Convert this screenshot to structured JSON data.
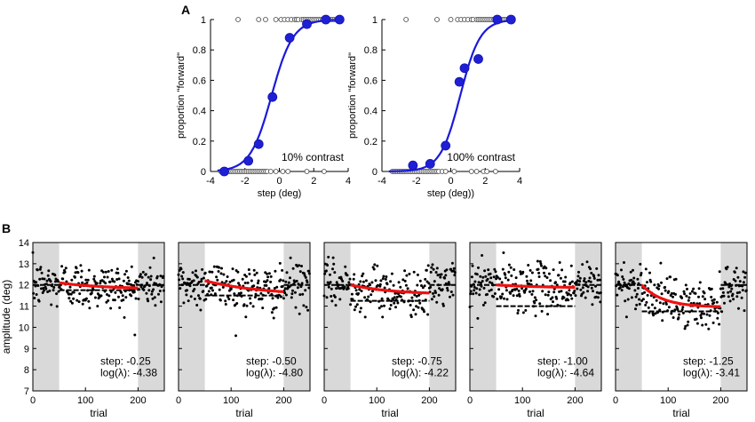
{
  "panel_labels": {
    "a": "A",
    "b": "B"
  },
  "chart_data": [
    {
      "id": "A1",
      "type": "scatter",
      "ylabel": "proportion \"forward\"",
      "xlabel": "step (deg)",
      "xlim": [
        -4,
        4
      ],
      "ylim": [
        0,
        1
      ],
      "xticks": [
        -4,
        -2,
        0,
        2,
        4
      ],
      "yticks": [
        0,
        0.2,
        0.4,
        0.6,
        0.8,
        1
      ],
      "annotation": "10% contrast",
      "series": [
        {
          "name": "binned proportion",
          "x": [
            -3.2,
            -1.8,
            -1.2,
            -0.4,
            0.6,
            1.6,
            2.7,
            3.5
          ],
          "y": [
            0.0,
            0.07,
            0.18,
            0.49,
            0.88,
            0.97,
            1.0,
            1.0
          ]
        },
        {
          "name": "logistic fit",
          "mu": -0.45,
          "scale": 0.62
        }
      ],
      "raw_trials": {
        "forward_x": [
          -2.4,
          -1.2,
          -0.8,
          -0.2,
          0.1,
          0.3,
          0.5,
          0.7,
          0.9,
          1.0,
          1.1,
          1.3,
          1.4,
          1.5,
          1.6,
          1.7,
          1.8,
          1.9,
          2.0,
          2.1,
          2.2,
          2.3,
          2.4,
          2.5,
          2.6,
          2.7,
          2.8,
          2.9,
          3.0,
          3.1,
          3.2,
          3.3,
          3.4
        ],
        "backward_x": [
          -3.4,
          -3.3,
          -3.2,
          -3.1,
          -3.0,
          -2.9,
          -2.8,
          -2.7,
          -2.6,
          -2.5,
          -2.4,
          -2.3,
          -2.2,
          -2.1,
          -2.0,
          -1.9,
          -1.8,
          -1.7,
          -1.6,
          -1.5,
          -1.4,
          -1.3,
          -1.2,
          -1.1,
          -1.0,
          -0.9,
          -0.8,
          -0.7,
          -0.5,
          -0.2,
          0.2,
          0.5,
          1.6,
          2.6
        ]
      }
    },
    {
      "id": "A2",
      "type": "scatter",
      "ylabel": "proportion \"forward\"",
      "xlabel": "step (deg))",
      "xlim": [
        -4,
        4
      ],
      "ylim": [
        0,
        1
      ],
      "xticks": [
        -4,
        -2,
        0,
        2,
        4
      ],
      "yticks": [
        0,
        0.2,
        0.4,
        0.6,
        0.8,
        1
      ],
      "annotation": "100% contrast",
      "series": [
        {
          "name": "binned proportion",
          "x": [
            -2.2,
            -1.2,
            -0.3,
            0.5,
            0.8,
            1.6,
            2.7,
            3.5
          ],
          "y": [
            0.04,
            0.05,
            0.17,
            0.59,
            0.68,
            0.74,
            1.0,
            1.0
          ]
        },
        {
          "name": "logistic fit",
          "mu": 0.55,
          "scale": 0.58
        }
      ],
      "raw_trials": {
        "forward_x": [
          -2.6,
          -0.8,
          0.0,
          0.4,
          0.6,
          0.8,
          1.0,
          1.2,
          1.3,
          1.5,
          1.6,
          1.7,
          1.8,
          1.9,
          2.0,
          2.1,
          2.2,
          2.3,
          2.4,
          2.5,
          2.6,
          2.7,
          2.8,
          2.9,
          3.0,
          3.1,
          3.2,
          3.3,
          3.4
        ],
        "backward_x": [
          -3.4,
          -3.3,
          -3.2,
          -3.1,
          -3.0,
          -2.9,
          -2.8,
          -2.7,
          -2.6,
          -2.5,
          -2.4,
          -2.3,
          -2.2,
          -2.1,
          -2.0,
          -1.9,
          -1.8,
          -1.7,
          -1.6,
          -1.5,
          -1.4,
          -1.3,
          -1.2,
          -1.1,
          -1.0,
          -0.9,
          -0.8,
          -0.7,
          -0.5,
          -0.3,
          0.2,
          1.2,
          1.5,
          1.9,
          2.1,
          2.6
        ]
      }
    },
    {
      "id": "B",
      "type": "scatter",
      "ylabel": "amplitude (deg)",
      "xlabel": "trial",
      "xlim": [
        0,
        250
      ],
      "ylim": [
        7,
        14
      ],
      "xticks": [
        0,
        100,
        200
      ],
      "yticks": [
        7,
        8,
        9,
        10,
        11,
        12,
        13,
        14
      ],
      "shaded_ranges": [
        [
          0,
          50
        ],
        [
          200,
          250
        ]
      ],
      "baseline": 12.0,
      "panels": [
        {
          "step_label": "step: -0.25",
          "log_label": "log(λ): -4.38",
          "target": 11.75,
          "fit": {
            "start": 12.1,
            "end": 11.8,
            "tau": 90
          }
        },
        {
          "step_label": "step: -0.50",
          "log_label": "log(λ): -4.80",
          "target": 11.5,
          "fit": {
            "start": 12.2,
            "end": 11.5,
            "tau": 110
          }
        },
        {
          "step_label": "step: -0.75",
          "log_label": "log(λ): -4.22",
          "target": 11.25,
          "fit": {
            "start": 12.0,
            "end": 11.55,
            "tau": 80
          }
        },
        {
          "step_label": "step: -1.00",
          "log_label": "log(λ): -4.64",
          "target": 11.0,
          "fit": {
            "start": 12.0,
            "end": 11.85,
            "tau": 100
          }
        },
        {
          "step_label": "step: -1.25",
          "log_label": "log(λ): -3.41",
          "target": 10.75,
          "fit": {
            "start": 12.0,
            "end": 10.95,
            "tau": 40
          }
        }
      ]
    }
  ]
}
